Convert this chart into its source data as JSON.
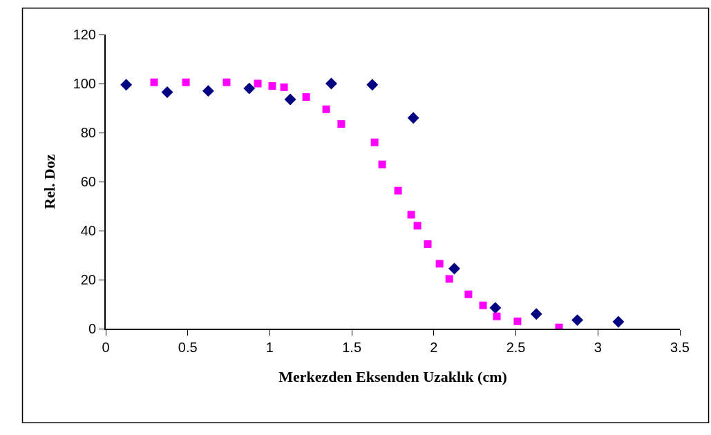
{
  "chart_data": {
    "type": "scatter",
    "xlabel": "Merkezden Eksenden Uzaklık (cm)",
    "ylabel": "Rel. Doz",
    "xlim": [
      0,
      3.5
    ],
    "xticks": [
      0,
      0.5,
      1,
      1.5,
      2,
      2.5,
      3,
      3.5
    ],
    "ylim": [
      0,
      120
    ],
    "yticks": [
      0,
      20,
      40,
      60,
      80,
      100,
      120
    ],
    "series": [
      {
        "color": "#000080",
        "marker": "diamond",
        "x": [
          0.125,
          0.375,
          0.625,
          0.875,
          1.125,
          1.375,
          1.625,
          1.875,
          2.125,
          2.375,
          2.625,
          2.875,
          3.125
        ],
        "values": [
          99.5,
          96.5,
          97,
          98,
          93.5,
          100,
          99.5,
          86,
          24.5,
          8.5,
          6,
          3.5,
          2.8
        ]
      },
      {
        "color": "#ff00ff",
        "marker": "square",
        "x": [
          0.295,
          0.489,
          0.737,
          0.927,
          1.015,
          1.087,
          1.222,
          1.344,
          1.436,
          1.639,
          1.685,
          1.782,
          1.862,
          1.9,
          1.963,
          2.035,
          2.094,
          2.211,
          2.3,
          2.384,
          2.51,
          2.763
        ],
        "values": [
          100.5,
          100.5,
          100.5,
          100,
          99,
          98.5,
          94.5,
          89.5,
          83.5,
          76,
          67,
          56.3,
          46.5,
          42,
          34.5,
          26.5,
          20.3,
          14,
          9.5,
          5,
          3,
          0.5
        ]
      }
    ]
  }
}
